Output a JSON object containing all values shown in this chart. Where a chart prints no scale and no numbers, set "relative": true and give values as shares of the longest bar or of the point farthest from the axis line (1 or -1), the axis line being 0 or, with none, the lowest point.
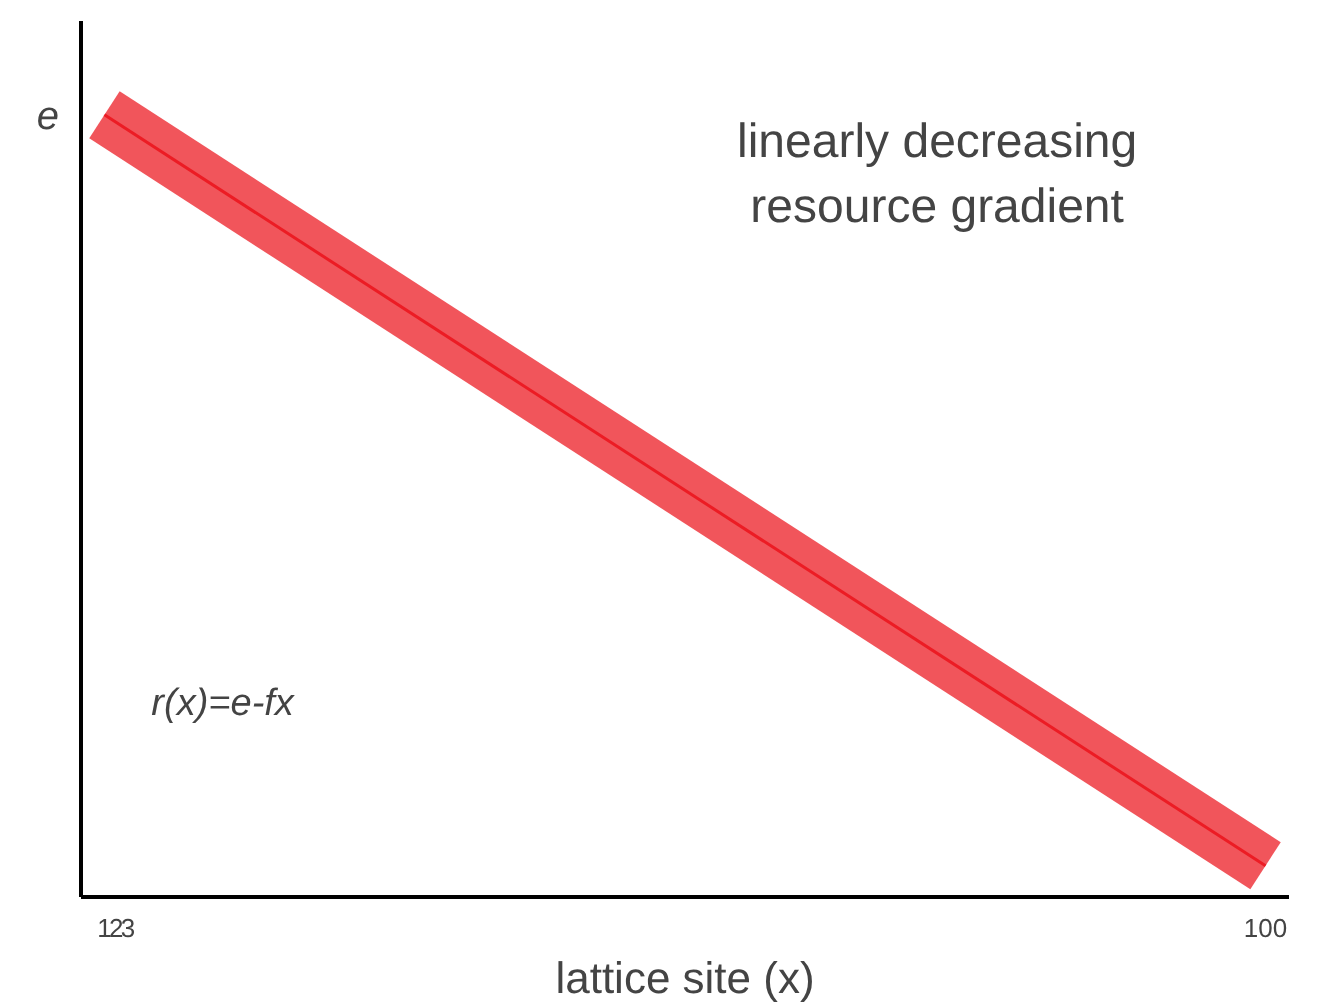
{
  "chart_data": {
    "type": "line",
    "relative": true,
    "xlabel": "lattice site (x)",
    "x": [
      1,
      100
    ],
    "xlim": [
      -1,
      102
    ],
    "xticks": [
      1,
      2,
      3,
      100
    ],
    "series": [
      {
        "color": "#ec1c24",
        "values": [
          1,
          0.04
        ]
      }
    ],
    "annotations": [
      "e",
      "linearly decreasing\nresource gradient",
      "r(x)=e-fx"
    ],
    "grid": false
  }
}
